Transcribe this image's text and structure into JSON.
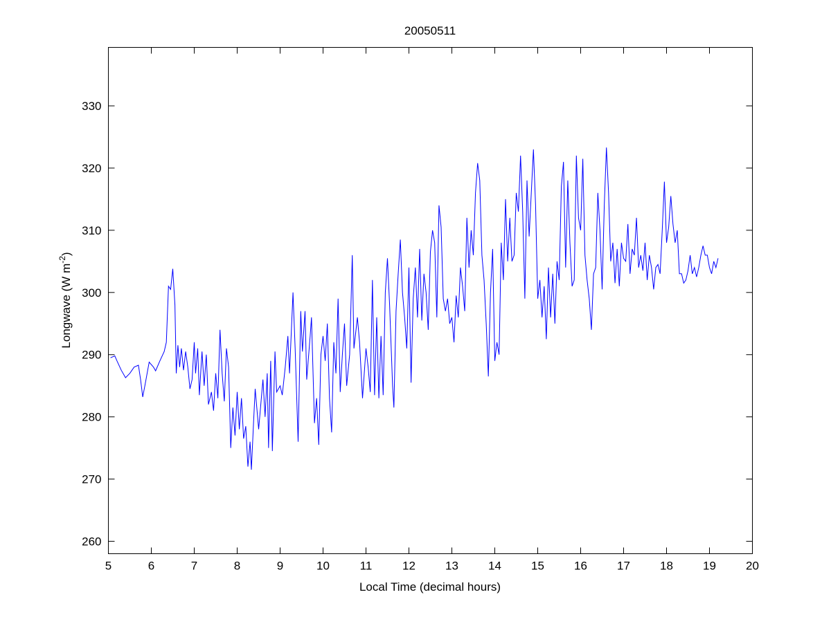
{
  "chart_data": {
    "type": "line",
    "title": "20050511",
    "xlabel": "Local Time (decimal hours)",
    "ylabel_main": "Longwave (W m",
    "ylabel_sup": "-2",
    "ylabel_close": ")",
    "xlim": [
      5,
      20
    ],
    "ylim": [
      258,
      339.4
    ],
    "xticks": [
      5,
      6,
      7,
      8,
      9,
      10,
      11,
      12,
      13,
      14,
      15,
      16,
      17,
      18,
      19,
      20
    ],
    "yticks": [
      260,
      270,
      280,
      290,
      300,
      310,
      320,
      330
    ],
    "grid": false,
    "series": [
      {
        "name": "longwave",
        "color": "#0000ff",
        "points": [
          [
            5.05,
            289.5
          ],
          [
            5.15,
            289.8
          ],
          [
            5.2,
            289
          ],
          [
            5.3,
            287.5
          ],
          [
            5.4,
            286.3
          ],
          [
            5.5,
            287
          ],
          [
            5.6,
            288
          ],
          [
            5.7,
            288.3
          ],
          [
            5.75,
            286
          ],
          [
            5.8,
            283.2
          ],
          [
            5.85,
            285
          ],
          [
            5.95,
            288.8
          ],
          [
            6.05,
            288
          ],
          [
            6.1,
            287.4
          ],
          [
            6.2,
            289
          ],
          [
            6.3,
            290.5
          ],
          [
            6.35,
            292
          ],
          [
            6.4,
            301
          ],
          [
            6.45,
            300.5
          ],
          [
            6.5,
            303.8
          ],
          [
            6.55,
            298
          ],
          [
            6.58,
            287
          ],
          [
            6.62,
            291.5
          ],
          [
            6.66,
            288
          ],
          [
            6.7,
            291
          ],
          [
            6.75,
            287.5
          ],
          [
            6.8,
            290.5
          ],
          [
            6.85,
            288
          ],
          [
            6.9,
            284.5
          ],
          [
            6.95,
            286
          ],
          [
            7.0,
            292
          ],
          [
            7.03,
            287
          ],
          [
            7.08,
            291
          ],
          [
            7.12,
            283.5
          ],
          [
            7.18,
            290.5
          ],
          [
            7.23,
            285
          ],
          [
            7.28,
            290
          ],
          [
            7.33,
            282
          ],
          [
            7.4,
            284
          ],
          [
            7.45,
            281
          ],
          [
            7.5,
            287
          ],
          [
            7.55,
            283
          ],
          [
            7.6,
            294
          ],
          [
            7.65,
            287
          ],
          [
            7.7,
            282.5
          ],
          [
            7.75,
            291
          ],
          [
            7.8,
            288
          ],
          [
            7.85,
            275
          ],
          [
            7.9,
            281.5
          ],
          [
            7.95,
            277
          ],
          [
            8.0,
            284
          ],
          [
            8.05,
            278
          ],
          [
            8.1,
            283
          ],
          [
            8.15,
            276.5
          ],
          [
            8.2,
            278.5
          ],
          [
            8.25,
            272
          ],
          [
            8.3,
            276
          ],
          [
            8.33,
            271.5
          ],
          [
            8.38,
            279
          ],
          [
            8.42,
            284.5
          ],
          [
            8.5,
            278
          ],
          [
            8.55,
            282
          ],
          [
            8.6,
            286
          ],
          [
            8.65,
            280
          ],
          [
            8.7,
            287
          ],
          [
            8.73,
            275
          ],
          [
            8.78,
            289
          ],
          [
            8.82,
            274.5
          ],
          [
            8.88,
            290.5
          ],
          [
            8.92,
            284
          ],
          [
            9.0,
            285
          ],
          [
            9.05,
            283.5
          ],
          [
            9.12,
            288
          ],
          [
            9.18,
            293
          ],
          [
            9.22,
            287
          ],
          [
            9.3,
            300
          ],
          [
            9.35,
            291
          ],
          [
            9.42,
            276
          ],
          [
            9.48,
            297
          ],
          [
            9.52,
            290.5
          ],
          [
            9.58,
            297
          ],
          [
            9.62,
            286
          ],
          [
            9.7,
            293
          ],
          [
            9.73,
            296
          ],
          [
            9.8,
            279
          ],
          [
            9.85,
            283
          ],
          [
            9.9,
            275.5
          ],
          [
            9.95,
            290
          ],
          [
            10.0,
            293
          ],
          [
            10.05,
            289
          ],
          [
            10.1,
            295
          ],
          [
            10.15,
            283
          ],
          [
            10.2,
            277.5
          ],
          [
            10.25,
            292
          ],
          [
            10.3,
            287
          ],
          [
            10.35,
            299
          ],
          [
            10.4,
            284
          ],
          [
            10.45,
            290
          ],
          [
            10.5,
            295
          ],
          [
            10.55,
            285
          ],
          [
            10.62,
            290
          ],
          [
            10.68,
            306
          ],
          [
            10.72,
            291
          ],
          [
            10.8,
            296
          ],
          [
            10.85,
            292
          ],
          [
            10.92,
            283
          ],
          [
            11.0,
            291
          ],
          [
            11.05,
            288
          ],
          [
            11.1,
            284
          ],
          [
            11.15,
            302
          ],
          [
            11.2,
            283.5
          ],
          [
            11.25,
            296
          ],
          [
            11.3,
            283
          ],
          [
            11.35,
            293
          ],
          [
            11.4,
            283.5
          ],
          [
            11.45,
            300
          ],
          [
            11.5,
            305.5
          ],
          [
            11.55,
            298
          ],
          [
            11.62,
            285
          ],
          [
            11.65,
            281.5
          ],
          [
            11.7,
            297
          ],
          [
            11.75,
            303
          ],
          [
            11.8,
            308.5
          ],
          [
            11.85,
            300
          ],
          [
            11.9,
            296
          ],
          [
            11.95,
            291
          ],
          [
            12.0,
            304
          ],
          [
            12.05,
            285.5
          ],
          [
            12.1,
            299
          ],
          [
            12.15,
            304
          ],
          [
            12.2,
            296
          ],
          [
            12.25,
            307
          ],
          [
            12.3,
            295.5
          ],
          [
            12.35,
            303
          ],
          [
            12.4,
            300
          ],
          [
            12.45,
            294
          ],
          [
            12.5,
            306.5
          ],
          [
            12.55,
            310
          ],
          [
            12.6,
            308
          ],
          [
            12.65,
            296
          ],
          [
            12.7,
            314
          ],
          [
            12.75,
            310.5
          ],
          [
            12.8,
            299
          ],
          [
            12.85,
            297
          ],
          [
            12.9,
            299
          ],
          [
            12.95,
            295
          ],
          [
            13.0,
            296
          ],
          [
            13.05,
            292
          ],
          [
            13.1,
            299.5
          ],
          [
            13.15,
            296
          ],
          [
            13.2,
            304
          ],
          [
            13.25,
            301
          ],
          [
            13.3,
            297
          ],
          [
            13.35,
            312
          ],
          [
            13.4,
            304
          ],
          [
            13.45,
            310
          ],
          [
            13.5,
            306
          ],
          [
            13.55,
            316
          ],
          [
            13.6,
            320.8
          ],
          [
            13.65,
            318
          ],
          [
            13.7,
            306
          ],
          [
            13.75,
            302
          ],
          [
            13.8,
            295
          ],
          [
            13.85,
            286.5
          ],
          [
            13.9,
            300
          ],
          [
            13.95,
            307
          ],
          [
            14.0,
            289
          ],
          [
            14.05,
            292
          ],
          [
            14.1,
            290
          ],
          [
            14.15,
            308
          ],
          [
            14.2,
            302
          ],
          [
            14.25,
            315
          ],
          [
            14.3,
            305
          ],
          [
            14.35,
            312
          ],
          [
            14.4,
            305
          ],
          [
            14.45,
            306
          ],
          [
            14.5,
            316
          ],
          [
            14.55,
            313
          ],
          [
            14.6,
            322
          ],
          [
            14.65,
            313
          ],
          [
            14.7,
            299
          ],
          [
            14.75,
            318
          ],
          [
            14.8,
            309
          ],
          [
            14.85,
            316
          ],
          [
            14.9,
            323
          ],
          [
            14.95,
            314
          ],
          [
            15.0,
            299
          ],
          [
            15.05,
            302
          ],
          [
            15.1,
            296
          ],
          [
            15.15,
            301
          ],
          [
            15.2,
            292.5
          ],
          [
            15.25,
            304
          ],
          [
            15.3,
            296
          ],
          [
            15.35,
            303
          ],
          [
            15.4,
            295
          ],
          [
            15.45,
            305
          ],
          [
            15.5,
            302
          ],
          [
            15.55,
            317
          ],
          [
            15.6,
            321
          ],
          [
            15.65,
            304
          ],
          [
            15.7,
            318
          ],
          [
            15.75,
            308
          ],
          [
            15.8,
            301
          ],
          [
            15.85,
            302
          ],
          [
            15.9,
            322
          ],
          [
            15.95,
            312
          ],
          [
            16.0,
            310
          ],
          [
            16.05,
            321.5
          ],
          [
            16.1,
            306
          ],
          [
            16.15,
            302
          ],
          [
            16.2,
            299
          ],
          [
            16.25,
            294
          ],
          [
            16.3,
            303
          ],
          [
            16.35,
            304
          ],
          [
            16.4,
            316
          ],
          [
            16.45,
            310
          ],
          [
            16.5,
            300.5
          ],
          [
            16.55,
            314
          ],
          [
            16.6,
            323.3
          ],
          [
            16.65,
            316
          ],
          [
            16.7,
            305
          ],
          [
            16.75,
            308
          ],
          [
            16.8,
            301.5
          ],
          [
            16.85,
            307
          ],
          [
            16.9,
            301
          ],
          [
            16.95,
            308
          ],
          [
            17.0,
            305.5
          ],
          [
            17.05,
            305
          ],
          [
            17.1,
            311
          ],
          [
            17.15,
            303
          ],
          [
            17.2,
            307
          ],
          [
            17.25,
            306
          ],
          [
            17.3,
            312
          ],
          [
            17.35,
            304
          ],
          [
            17.4,
            306
          ],
          [
            17.45,
            303.5
          ],
          [
            17.5,
            308
          ],
          [
            17.55,
            302
          ],
          [
            17.6,
            306
          ],
          [
            17.65,
            304
          ],
          [
            17.7,
            300.5
          ],
          [
            17.75,
            304
          ],
          [
            17.8,
            304.5
          ],
          [
            17.85,
            303
          ],
          [
            17.9,
            310
          ],
          [
            17.95,
            317.8
          ],
          [
            18.0,
            308
          ],
          [
            18.05,
            310.5
          ],
          [
            18.1,
            315.5
          ],
          [
            18.15,
            311
          ],
          [
            18.2,
            308
          ],
          [
            18.25,
            310
          ],
          [
            18.3,
            303
          ],
          [
            18.35,
            303
          ],
          [
            18.4,
            301.5
          ],
          [
            18.45,
            302
          ],
          [
            18.5,
            303.5
          ],
          [
            18.55,
            306
          ],
          [
            18.6,
            303
          ],
          [
            18.65,
            304
          ],
          [
            18.7,
            302.5
          ],
          [
            18.75,
            304
          ],
          [
            18.8,
            306
          ],
          [
            18.85,
            307.5
          ],
          [
            18.9,
            306
          ],
          [
            18.95,
            306
          ],
          [
            19.0,
            304
          ],
          [
            19.05,
            303
          ],
          [
            19.1,
            305
          ],
          [
            19.15,
            304
          ],
          [
            19.2,
            305.5
          ]
        ]
      }
    ]
  }
}
